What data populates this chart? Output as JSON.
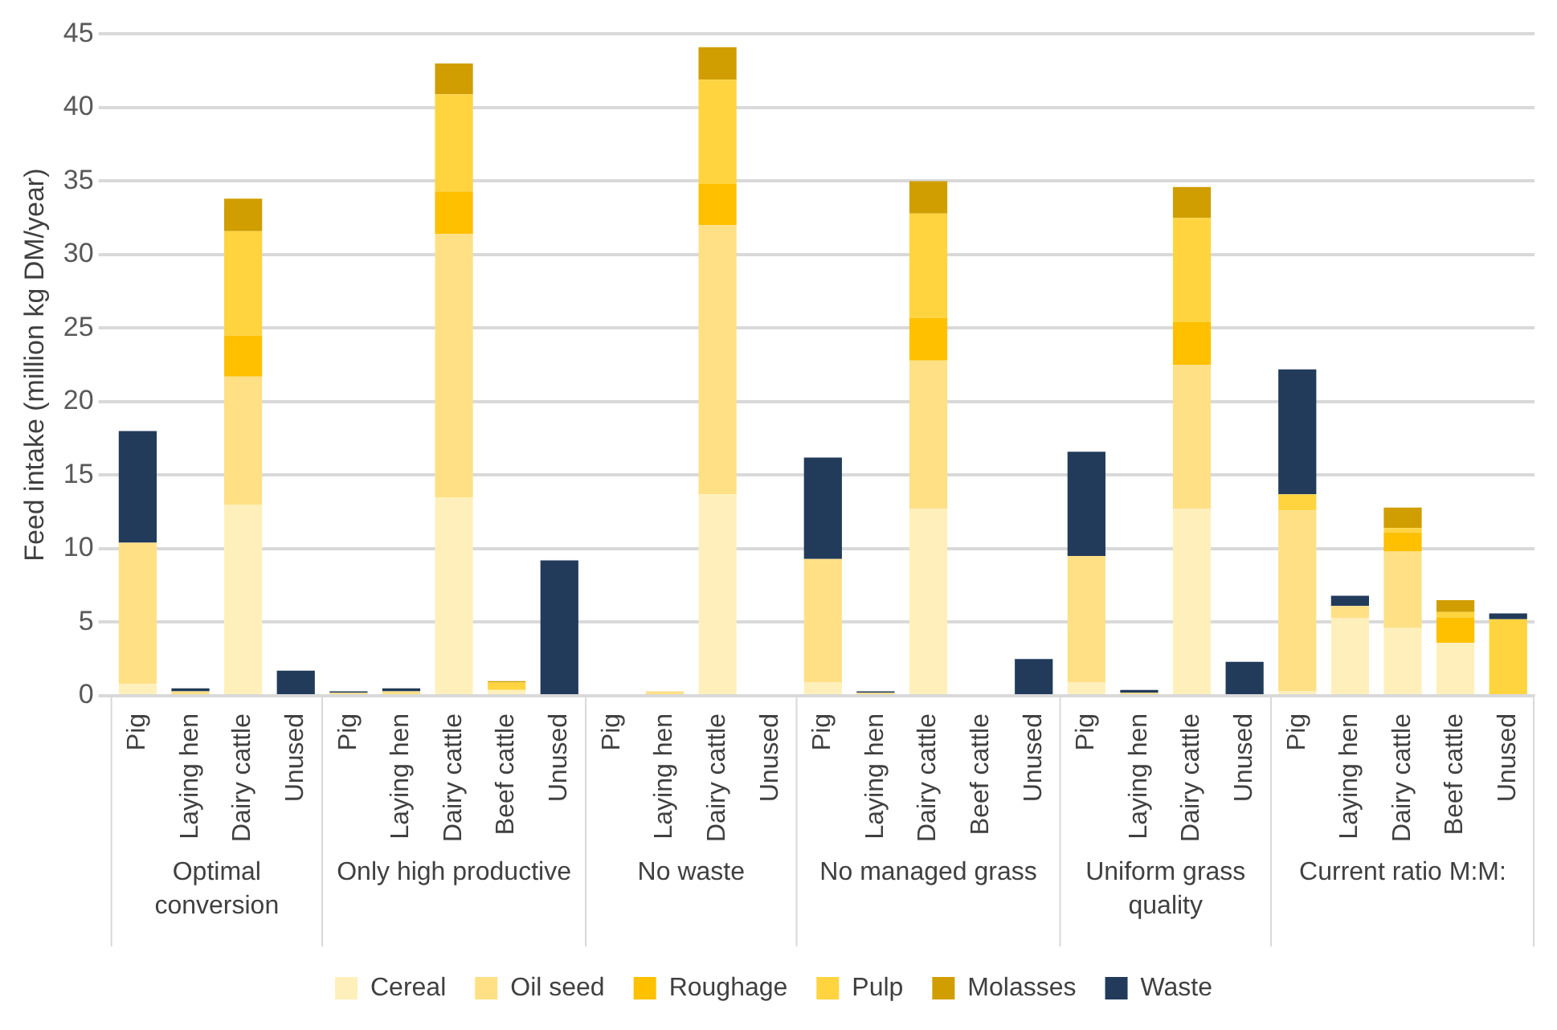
{
  "chart_data": {
    "type": "bar",
    "stacked": true,
    "ylabel": "Feed intake (million kg DM/year)",
    "categories": [
      "Pig",
      "Laying hen",
      "Dairy cattle",
      "Unused",
      "Pig",
      "Laying hen",
      "Dairy cattle",
      "Beef cattle",
      "Unused",
      "Pig",
      "Laying hen",
      "Dairy cattle",
      "Unused",
      "Pig",
      "Laying hen",
      "Dairy cattle",
      "Beef cattle",
      "Unused",
      "Pig",
      "Laying hen",
      "Dairy cattle",
      "Unused",
      "Pig",
      "Laying hen",
      "Dairy cattle",
      "Beef cattle",
      "Unused"
    ],
    "annotations": [
      "Optimal conversion",
      "Only high productive",
      "No waste",
      "No managed grass",
      "Uniform grass quality",
      "Current ratio M:M:"
    ],
    "series": [
      {
        "name": "Cereal",
        "color": "#fff0bb",
        "values": [
          0.8,
          0,
          13,
          0,
          0,
          0,
          13.5,
          0.4,
          0,
          0,
          0,
          13.7,
          0,
          0.9,
          0,
          12.7,
          0,
          0,
          0.9,
          0,
          12.7,
          0,
          0.3,
          5.3,
          4.6,
          3.6,
          0
        ]
      },
      {
        "name": "Oil seed",
        "color": "#ffe085",
        "values": [
          9.6,
          0.3,
          8.7,
          0,
          0.2,
          0.3,
          17.9,
          0,
          0,
          0,
          0.3,
          18.3,
          0,
          8.4,
          0.2,
          10.1,
          0,
          0,
          8.6,
          0.2,
          9.8,
          0,
          12.3,
          0.8,
          5.2,
          0,
          0
        ]
      },
      {
        "name": "Roughage",
        "color": "#ffc000",
        "values": [
          0,
          0,
          2.8,
          0,
          0,
          0,
          2.9,
          0,
          0,
          0,
          0,
          2.8,
          0,
          0,
          0,
          2.9,
          0,
          0,
          0,
          0,
          2.9,
          0,
          0,
          0,
          1.3,
          1.7,
          0
        ]
      },
      {
        "name": "Pulp",
        "color": "#ffd43f",
        "values": [
          0,
          0,
          7.1,
          0,
          0,
          0,
          6.6,
          0.5,
          0,
          0,
          0,
          7.1,
          0,
          0,
          0,
          7.1,
          0,
          0,
          0,
          0,
          7.1,
          0,
          1.1,
          0,
          0.3,
          0.4,
          5.2
        ]
      },
      {
        "name": "Molasses",
        "color": "#d09e00",
        "values": [
          0,
          0,
          2.2,
          0,
          0,
          0,
          2.1,
          0.1,
          0,
          0,
          0,
          2.2,
          0,
          0,
          0,
          2.2,
          0,
          0,
          0,
          0,
          2.1,
          0,
          0,
          0,
          1.4,
          0.8,
          0
        ]
      },
      {
        "name": "Waste",
        "color": "#223b5b",
        "values": [
          7.6,
          0.2,
          0,
          1.7,
          0.1,
          0.2,
          0,
          0,
          9.2,
          0,
          0,
          0,
          0,
          6.9,
          0.1,
          0,
          0,
          2.5,
          7.1,
          0.2,
          0,
          2.3,
          8.5,
          0.7,
          0,
          0,
          0.4
        ]
      }
    ],
    "ylim": [
      0,
      45
    ],
    "yticks": [
      0,
      5,
      10,
      15,
      20,
      25,
      30,
      35,
      40,
      45
    ],
    "grid": "y",
    "legend": "bottom"
  }
}
